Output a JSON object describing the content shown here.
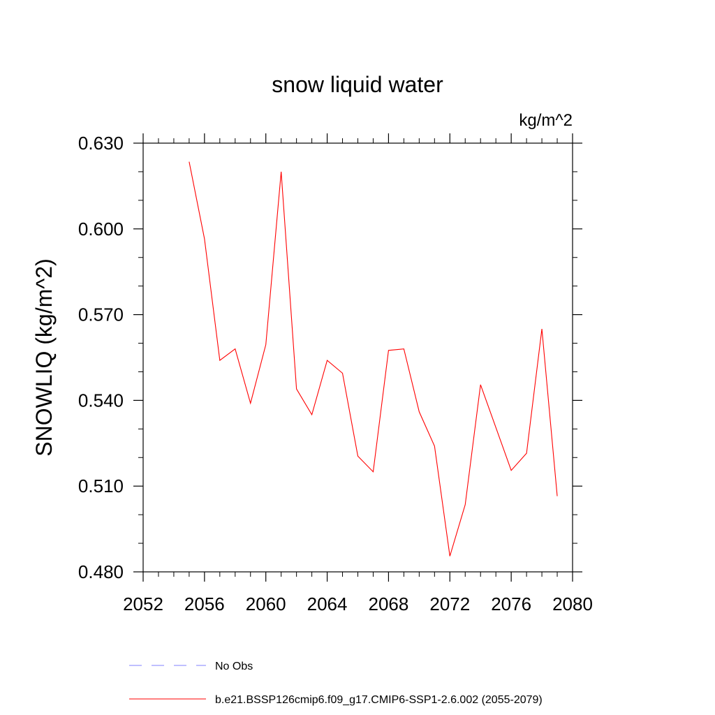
{
  "chart_data": {
    "type": "line",
    "title": "snow liquid water",
    "units_label": "kg/m^2",
    "ylabel": "SNOWLIQ  (kg/m^2)",
    "xlabel": "",
    "xlim": [
      2052,
      2080
    ],
    "ylim": [
      0.48,
      0.63
    ],
    "xticks": [
      2052,
      2056,
      2060,
      2064,
      2068,
      2072,
      2076,
      2080
    ],
    "xtick_labels": [
      "2052",
      "2056",
      "2060",
      "2064",
      "2068",
      "2072",
      "2076",
      "2080"
    ],
    "yticks": [
      0.48,
      0.51,
      0.54,
      0.57,
      0.6,
      0.63
    ],
    "ytick_labels": [
      "0.480",
      "0.510",
      "0.540",
      "0.570",
      "0.600",
      "0.630"
    ],
    "x_minor_step": 1,
    "y_minor_step": 0.01,
    "series": [
      {
        "name": "b.e21.BSSP126cmip6.f09_g17.CMIP6-SSP1-2.6.002 (2055-2079)",
        "color": "#ff0000",
        "x": [
          2055,
          2056,
          2057,
          2058,
          2059,
          2060,
          2061,
          2062,
          2063,
          2064,
          2065,
          2066,
          2067,
          2068,
          2069,
          2070,
          2071,
          2072,
          2073,
          2074,
          2075,
          2076,
          2077,
          2078,
          2079
        ],
        "y": [
          0.6235,
          0.5965,
          0.554,
          0.558,
          0.539,
          0.5595,
          0.62,
          0.544,
          0.535,
          0.554,
          0.5495,
          0.5205,
          0.515,
          0.5575,
          0.558,
          0.536,
          0.524,
          0.4855,
          0.5035,
          0.5455,
          0.5305,
          0.5155,
          0.5215,
          0.565,
          0.5065
        ]
      }
    ],
    "legend": [
      {
        "label": "No Obs",
        "color": "#8080ff",
        "style": "dashed"
      },
      {
        "label": "b.e21.BSSP126cmip6.f09_g17.CMIP6-SSP1-2.6.002 (2055-2079)",
        "color": "#ff0000",
        "style": "solid"
      }
    ],
    "legend_position": "bottom"
  }
}
